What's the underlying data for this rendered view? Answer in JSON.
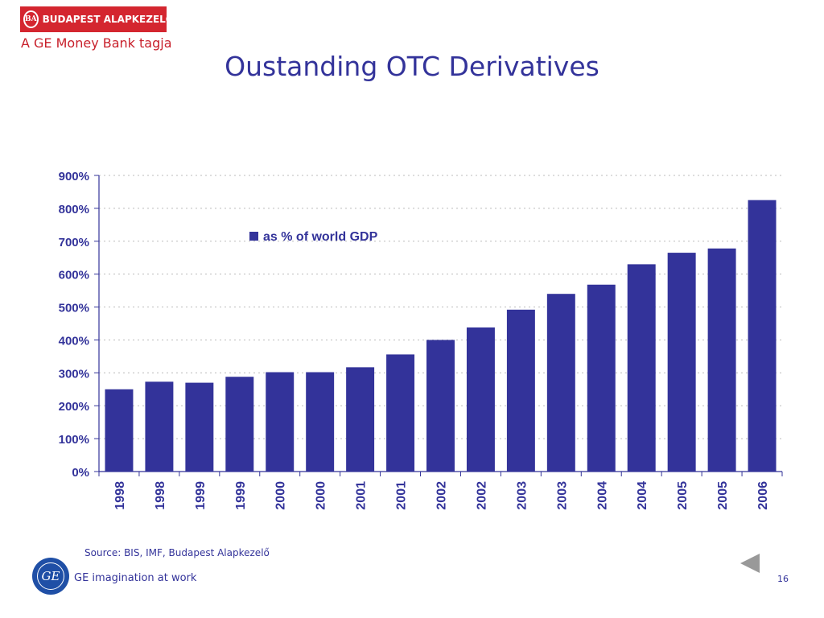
{
  "branding": {
    "company": "BUDAPEST ALAPKEZELŐ",
    "mark": "BA",
    "tagline": "A GE Money Bank tagja",
    "ge_mark": "GE",
    "ge_tagline": "GE imagination at work",
    "primary_color": "#33339a",
    "brand_red": "#d4262f"
  },
  "title": "Oustanding OTC Derivatives",
  "source": "Source: BIS, IMF, Budapest Alapkezelő",
  "page_number": "16",
  "navigation": {
    "back_icon": "triangle-left-icon"
  },
  "chart_data": {
    "type": "bar",
    "title": "",
    "xlabel": "",
    "ylabel": "",
    "categories": [
      "1998",
      "1998",
      "1999",
      "1999",
      "2000",
      "2000",
      "2001",
      "2001",
      "2002",
      "2002",
      "2003",
      "2003",
      "2004",
      "2004",
      "2005",
      "2005",
      "2006"
    ],
    "series": [
      {
        "name": "as % of world GDP",
        "color": "#33339a",
        "values": [
          250,
          273,
          270,
          288,
          302,
          302,
          317,
          356,
          400,
          438,
          492,
          540,
          568,
          630,
          665,
          678,
          825
        ]
      }
    ],
    "ylim": [
      0,
      900
    ],
    "yticks": [
      0,
      100,
      200,
      300,
      400,
      500,
      600,
      700,
      800,
      900
    ],
    "ytick_labels": [
      "0%",
      "100%",
      "200%",
      "300%",
      "400%",
      "500%",
      "600%",
      "700%",
      "800%",
      "900%"
    ],
    "grid": true,
    "legend": "top-left inside plot"
  }
}
